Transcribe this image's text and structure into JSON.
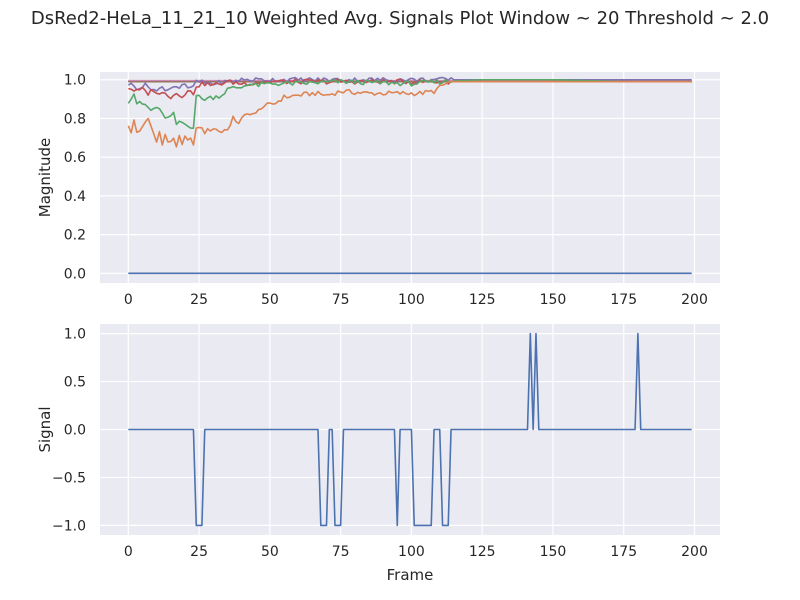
{
  "figure_title": "DsRed2-HeLa_11_21_10 Weighted Avg. Signals Plot Window ~ 20 Threshold ~ 2.0",
  "colors": {
    "panel_bg": "#eaeaf2",
    "grid": "#ffffff",
    "series": [
      "#4c72b0",
      "#dd8452",
      "#55a868",
      "#c44e52",
      "#8172b3",
      "#937860",
      "#da8bc3",
      "#8c8c8c",
      "#ccb974",
      "#64b5cd"
    ]
  },
  "chart_data": [
    {
      "type": "line",
      "title": "",
      "xlabel": "",
      "ylabel": "Magnitude",
      "xlim": [
        -10,
        209
      ],
      "ylim": [
        -0.05,
        1.04
      ],
      "xticks": [
        0,
        25,
        50,
        75,
        100,
        125,
        150,
        175,
        200
      ],
      "yticks": [
        0.0,
        0.2,
        0.4,
        0.6,
        0.8,
        1.0
      ],
      "ytick_labels": [
        "0.0",
        "0.2",
        "0.4",
        "0.6",
        "0.8",
        "1.0"
      ],
      "grid": true,
      "x_range": [
        0,
        199
      ],
      "series": [
        {
          "color": "#4c72b0",
          "points": [
            [
              0,
              0.0
            ],
            [
              199,
              0.0
            ]
          ]
        },
        {
          "color": "#dd8452",
          "points": [
            [
              0,
              0.77
            ],
            [
              1,
              0.72
            ],
            [
              2,
              0.79
            ],
            [
              3,
              0.73
            ],
            [
              5,
              0.75
            ],
            [
              7,
              0.8
            ],
            [
              9,
              0.72
            ],
            [
              10,
              0.69
            ],
            [
              11,
              0.73
            ],
            [
              12,
              0.66
            ],
            [
              13,
              0.72
            ],
            [
              14,
              0.67
            ],
            [
              16,
              0.7
            ],
            [
              17,
              0.66
            ],
            [
              18,
              0.7
            ],
            [
              19,
              0.66
            ],
            [
              20,
              0.7
            ],
            [
              21,
              0.68
            ],
            [
              22,
              0.71
            ],
            [
              23,
              0.66
            ],
            [
              24,
              0.74
            ],
            [
              25,
              0.76
            ],
            [
              27,
              0.73
            ],
            [
              30,
              0.75
            ],
            [
              33,
              0.73
            ],
            [
              36,
              0.76
            ],
            [
              37,
              0.8
            ],
            [
              39,
              0.78
            ],
            [
              41,
              0.81
            ],
            [
              43,
              0.83
            ],
            [
              45,
              0.82
            ],
            [
              47,
              0.86
            ],
            [
              50,
              0.87
            ],
            [
              52,
              0.88
            ],
            [
              55,
              0.91
            ],
            [
              60,
              0.92
            ],
            [
              66,
              0.93
            ],
            [
              70,
              0.92
            ],
            [
              75,
              0.94
            ],
            [
              85,
              0.93
            ],
            [
              95,
              0.93
            ],
            [
              103,
              0.93
            ],
            [
              108,
              0.94
            ],
            [
              111,
              0.97
            ],
            [
              114,
              0.99
            ],
            [
              125,
              0.99
            ],
            [
              150,
              0.99
            ],
            [
              175,
              0.99
            ],
            [
              199,
              0.99
            ]
          ]
        },
        {
          "color": "#55a868",
          "points": [
            [
              0,
              0.89
            ],
            [
              2,
              0.93
            ],
            [
              3,
              0.88
            ],
            [
              6,
              0.87
            ],
            [
              8,
              0.84
            ],
            [
              10,
              0.86
            ],
            [
              12,
              0.82
            ],
            [
              14,
              0.8
            ],
            [
              16,
              0.82
            ],
            [
              17,
              0.77
            ],
            [
              19,
              0.78
            ],
            [
              21,
              0.76
            ],
            [
              23,
              0.76
            ],
            [
              24,
              0.92
            ],
            [
              26,
              0.9
            ],
            [
              30,
              0.91
            ],
            [
              33,
              0.92
            ],
            [
              35,
              0.95
            ],
            [
              38,
              0.96
            ],
            [
              40,
              0.96
            ],
            [
              42,
              0.98
            ],
            [
              45,
              0.97
            ],
            [
              50,
              0.98
            ],
            [
              60,
              0.98
            ],
            [
              75,
              0.99
            ],
            [
              100,
              0.98
            ],
            [
              110,
              0.99
            ],
            [
              125,
              1.0
            ],
            [
              150,
              1.0
            ],
            [
              175,
              0.99
            ],
            [
              199,
              0.99
            ]
          ]
        },
        {
          "color": "#c44e52",
          "points": [
            [
              0,
              0.96
            ],
            [
              3,
              0.94
            ],
            [
              5,
              0.95
            ],
            [
              7,
              0.93
            ],
            [
              9,
              0.95
            ],
            [
              11,
              0.92
            ],
            [
              13,
              0.94
            ],
            [
              15,
              0.91
            ],
            [
              17,
              0.93
            ],
            [
              19,
              0.92
            ],
            [
              21,
              0.94
            ],
            [
              23,
              0.93
            ],
            [
              24,
              0.97
            ],
            [
              27,
              0.98
            ],
            [
              30,
              0.97
            ],
            [
              35,
              0.99
            ],
            [
              40,
              0.98
            ],
            [
              50,
              0.99
            ],
            [
              75,
              0.99
            ],
            [
              100,
              0.99
            ],
            [
              150,
              0.99
            ],
            [
              199,
              0.99
            ]
          ]
        },
        {
          "color": "#8172b3",
          "points": [
            [
              0,
              0.98
            ],
            [
              3,
              0.96
            ],
            [
              6,
              0.97
            ],
            [
              8,
              0.96
            ],
            [
              10,
              0.94
            ],
            [
              12,
              0.96
            ],
            [
              14,
              0.95
            ],
            [
              16,
              0.97
            ],
            [
              18,
              0.96
            ],
            [
              20,
              0.97
            ],
            [
              22,
              0.95
            ],
            [
              24,
              0.99
            ],
            [
              30,
              0.98
            ],
            [
              40,
              1.0
            ],
            [
              75,
              1.0
            ],
            [
              150,
              1.0
            ],
            [
              199,
              1.0
            ]
          ]
        },
        {
          "color": "#937860",
          "points": [
            [
              0,
              0.99
            ],
            [
              199,
              0.99
            ]
          ]
        },
        {
          "color": "#da8bc3",
          "points": [
            [
              0,
              0.995
            ],
            [
              199,
              0.995
            ]
          ]
        },
        {
          "color": "#8c8c8c",
          "points": [
            [
              0,
              0.99
            ],
            [
              199,
              0.99
            ]
          ]
        },
        {
          "color": "#ccb974",
          "points": [
            [
              0,
              0.995
            ],
            [
              199,
              0.995
            ]
          ]
        },
        {
          "color": "#64b5cd",
          "points": [
            [
              0,
              0.995
            ],
            [
              199,
              0.995
            ]
          ]
        }
      ]
    },
    {
      "type": "line",
      "title": "",
      "xlabel": "Frame",
      "ylabel": "Signal",
      "xlim": [
        -10,
        209
      ],
      "ylim": [
        -1.1,
        1.1
      ],
      "xticks": [
        0,
        25,
        50,
        75,
        100,
        125,
        150,
        175,
        200
      ],
      "yticks": [
        -1.0,
        -0.5,
        0.0,
        0.5,
        1.0
      ],
      "ytick_labels": [
        "−1.0",
        "−0.5",
        "0.0",
        "0.5",
        "1.0"
      ],
      "grid": true,
      "series": [
        {
          "name": "",
          "color": "#4c72b0",
          "points": [
            [
              0,
              0
            ],
            [
              23,
              0
            ],
            [
              24,
              -1
            ],
            [
              26,
              -1
            ],
            [
              27,
              0
            ],
            [
              67,
              0
            ],
            [
              68,
              -1
            ],
            [
              70,
              -1
            ],
            [
              71,
              0
            ],
            [
              72,
              0
            ],
            [
              73,
              -1
            ],
            [
              75,
              -1
            ],
            [
              76,
              0
            ],
            [
              94,
              0
            ],
            [
              95,
              -1
            ],
            [
              96,
              0
            ],
            [
              100,
              0
            ],
            [
              101,
              -1
            ],
            [
              107,
              -1
            ],
            [
              108,
              0
            ],
            [
              110,
              0
            ],
            [
              111,
              -1
            ],
            [
              113,
              -1
            ],
            [
              114,
              0
            ],
            [
              141,
              0
            ],
            [
              142,
              1
            ],
            [
              143,
              0
            ],
            [
              144,
              1
            ],
            [
              145,
              0
            ],
            [
              179,
              0
            ],
            [
              180,
              1
            ],
            [
              181,
              0
            ],
            [
              199,
              0
            ]
          ]
        }
      ]
    }
  ]
}
